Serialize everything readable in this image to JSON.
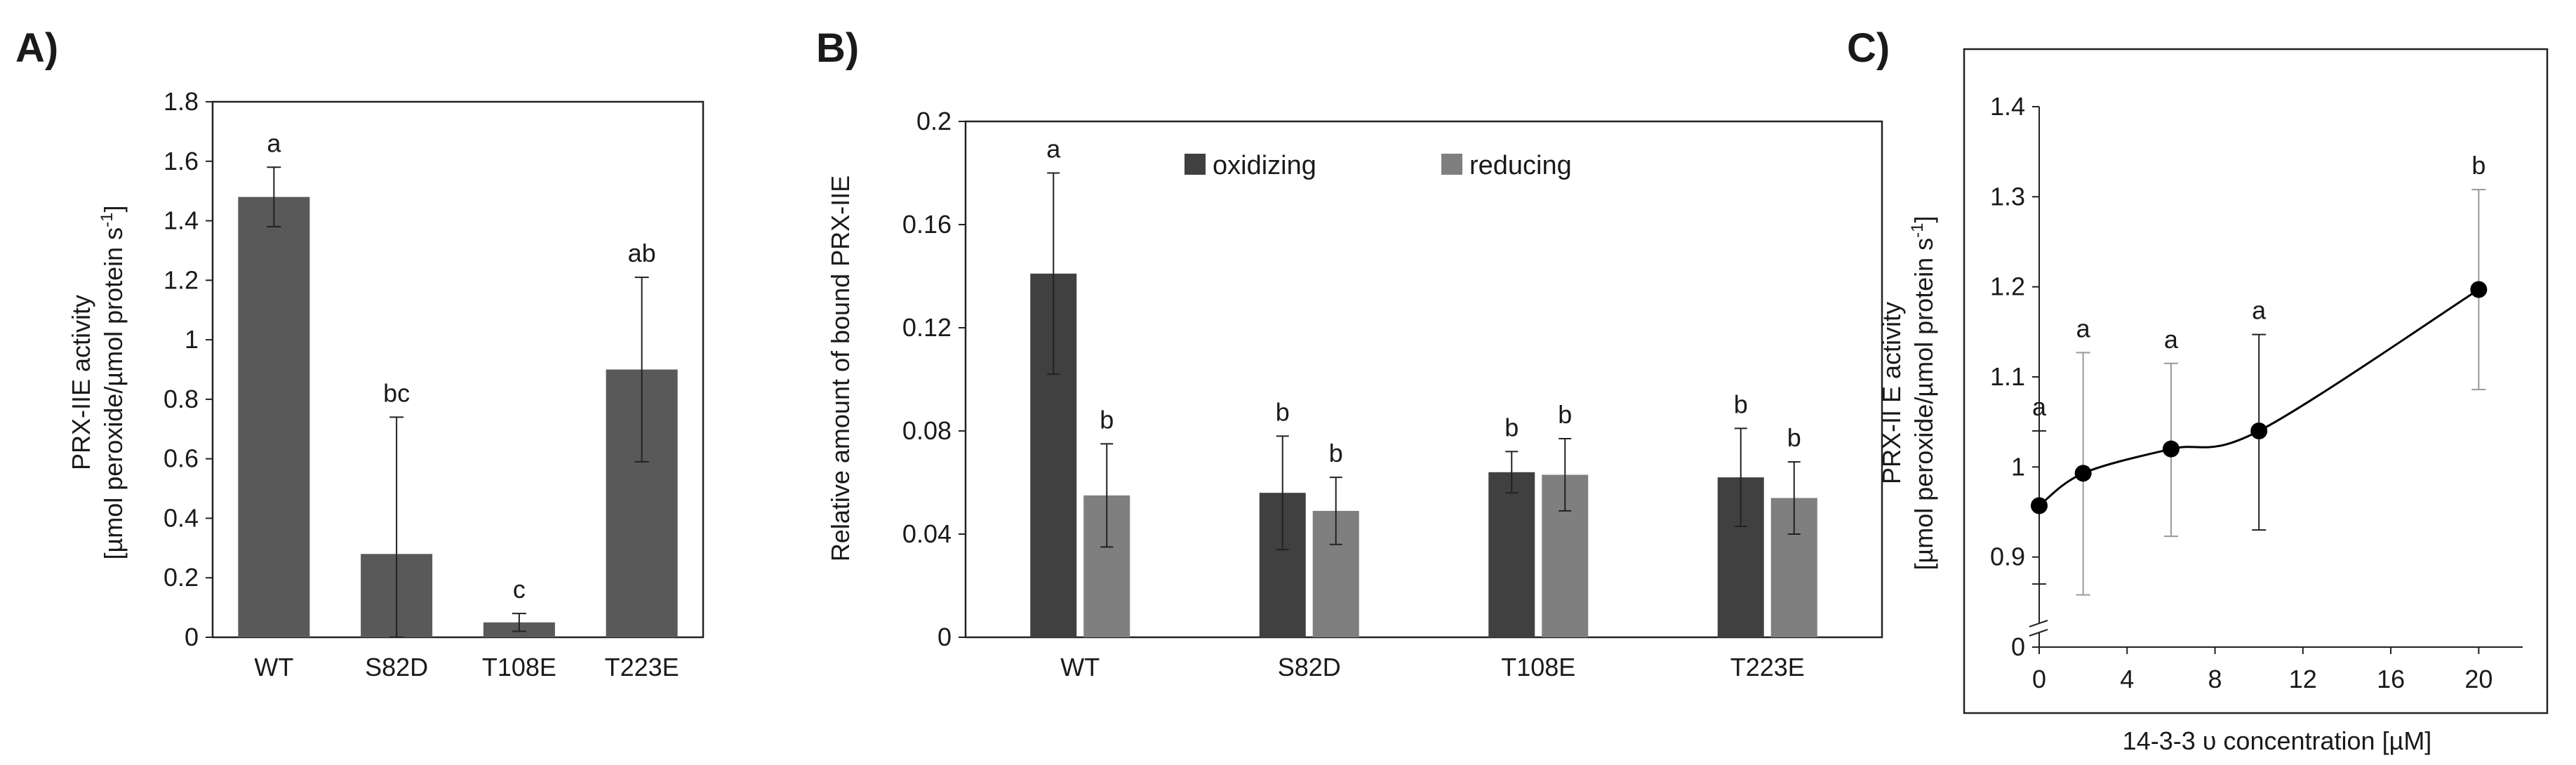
{
  "panels": [
    {
      "id": "A",
      "label": "A)",
      "chart_data": {
        "type": "bar",
        "title": "",
        "xlabel": "",
        "ylabel_line1": "PRX-IIE activity",
        "ylabel_line2": "[µmol peroxide/µmol protein s",
        "ylabel_sup": "-1",
        "ylabel_close": "]",
        "ylim": [
          0,
          1.8
        ],
        "yticks": [
          0,
          0.2,
          0.4,
          0.6,
          0.8,
          1.0,
          1.2,
          1.4,
          1.6,
          1.8
        ],
        "ytick_labels": [
          "0",
          "0.2",
          "0.4",
          "0.6",
          "0.8",
          "1",
          "1.2",
          "1.4",
          "1.6",
          "1.8"
        ],
        "categories": [
          "WT",
          "S82D",
          "T108E",
          "T223E"
        ],
        "series": [
          {
            "name": "activity",
            "color": "#595959",
            "values": [
              1.48,
              0.28,
              0.05,
              0.9
            ],
            "err_upper": [
              1.58,
              0.74,
              0.08,
              1.21
            ],
            "err_lower": [
              1.38,
              0.0,
              0.02,
              0.59
            ],
            "sig": [
              "a",
              "bc",
              "c",
              "ab"
            ]
          }
        ]
      }
    },
    {
      "id": "B",
      "label": "B)",
      "chart_data": {
        "type": "bar",
        "title": "",
        "xlabel": "",
        "ylabel": "Relative amount of bound PRX-IIE",
        "ylim": [
          0,
          0.2
        ],
        "yticks": [
          0,
          0.04,
          0.08,
          0.12,
          0.16,
          0.2
        ],
        "ytick_labels": [
          "0",
          "0.04",
          "0.08",
          "0.12",
          "0.16",
          "0.2"
        ],
        "categories": [
          "WT",
          "S82D",
          "T108E",
          "T223E"
        ],
        "legend_position": "top-center",
        "series": [
          {
            "name": "oxidizing",
            "color": "#404040",
            "values": [
              0.141,
              0.056,
              0.064,
              0.062
            ],
            "err_upper": [
              0.18,
              0.078,
              0.072,
              0.081
            ],
            "err_lower": [
              0.102,
              0.034,
              0.056,
              0.043
            ],
            "sig": [
              "a",
              "b",
              "b",
              "b"
            ]
          },
          {
            "name": "reducing",
            "color": "#7f7f7f",
            "values": [
              0.055,
              0.049,
              0.063,
              0.054
            ],
            "err_upper": [
              0.075,
              0.062,
              0.077,
              0.068
            ],
            "err_lower": [
              0.035,
              0.036,
              0.049,
              0.04
            ],
            "sig": [
              "b",
              "b",
              "b",
              "b"
            ]
          }
        ]
      }
    },
    {
      "id": "C",
      "label": "C)",
      "chart_data": {
        "type": "line",
        "title": "",
        "xlabel": "14-3-3 υ concentration [µM]",
        "ylabel_line1": "PRX-II E activity",
        "ylabel_line2": "[µmol peroxide/µmol protein s",
        "ylabel_sup": "-1",
        "ylabel_close": "]",
        "xlim": [
          0,
          22
        ],
        "ylim": [
          0.8,
          1.4
        ],
        "axis_break": true,
        "xticks": [
          0,
          4,
          8,
          12,
          16,
          20
        ],
        "xtick_labels": [
          "0",
          "4",
          "8",
          "12",
          "16",
          "20"
        ],
        "yticks": [
          0.9,
          1.0,
          1.1,
          1.2,
          1.3,
          1.4
        ],
        "ytick_labels": [
          "0.9",
          "1",
          "1.1",
          "1.2",
          "1.3",
          "1.4"
        ],
        "ybottom_label": "0",
        "series": [
          {
            "name": "PRX-II E activity",
            "color": "#000000",
            "x": [
              0,
              2,
              6,
              10,
              20
            ],
            "y": [
              0.957,
              0.993,
              1.02,
              1.04,
              1.197
            ],
            "err_upper": [
              1.04,
              1.127,
              1.115,
              1.147,
              1.308
            ],
            "err_lower": [
              0.87,
              0.858,
              0.923,
              0.93,
              1.086
            ],
            "sig": [
              "a",
              "a",
              "a",
              "a",
              "b"
            ]
          }
        ]
      }
    }
  ]
}
